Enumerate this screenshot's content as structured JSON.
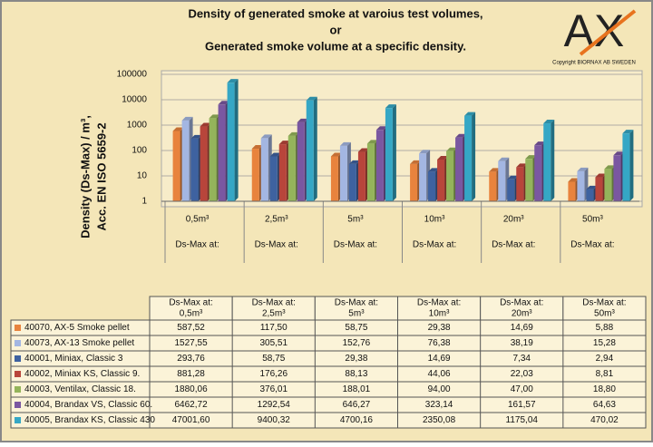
{
  "chart_data": {
    "type": "bar",
    "title": [
      "Density of generated smoke at varoius test volumes,",
      "or",
      "Generated smoke volume at a specific density."
    ],
    "ylabel": [
      "Density (Ds-Max) / m³,",
      "Acc. EN ISO 5659-2"
    ],
    "category_label": "Ds-Max at:",
    "categories": [
      "0,5m³",
      "2,5m³",
      "5m³",
      "10m³",
      "20m³",
      "50m³"
    ],
    "log_scale": true,
    "grid": true,
    "ylim": [
      1,
      100000
    ],
    "yticks": [
      1,
      10,
      100,
      1000,
      10000,
      100000
    ],
    "series": [
      {
        "name": "40070, AX-5 Smoke pellet",
        "color": "#e8833d",
        "values": [
          587.52,
          117.5,
          58.75,
          29.38,
          14.69,
          5.88
        ],
        "value_labels": [
          "587,52",
          "117,50",
          "58,75",
          "29,38",
          "14,69",
          "5,88"
        ]
      },
      {
        "name": "40073, AX-13 Smoke pellet",
        "color": "#a3b6e2",
        "values": [
          1527.55,
          305.51,
          152.76,
          76.38,
          38.19,
          15.28
        ],
        "value_labels": [
          "1527,55",
          "305,51",
          "152,76",
          "76,38",
          "38,19",
          "15,28"
        ]
      },
      {
        "name": "40001, Miniax, Classic 3",
        "color": "#3e62a0",
        "values": [
          293.76,
          58.75,
          29.38,
          14.69,
          7.34,
          2.94
        ],
        "value_labels": [
          "293,76",
          "58,75",
          "29,38",
          "14,69",
          "7,34",
          "2,94"
        ]
      },
      {
        "name": "40002, Miniax KS, Classic 9.",
        "color": "#b8453b",
        "values": [
          881.28,
          176.26,
          88.13,
          44.06,
          22.03,
          8.81
        ],
        "value_labels": [
          "881,28",
          "176,26",
          "88,13",
          "44,06",
          "22,03",
          "8,81"
        ]
      },
      {
        "name": "40003, Ventilax, Classic 18.",
        "color": "#94b45b",
        "values": [
          1880.06,
          376.01,
          188.01,
          94.0,
          47.0,
          18.8
        ],
        "value_labels": [
          "1880,06",
          "376,01",
          "188,01",
          "94,00",
          "47,00",
          "18,80"
        ]
      },
      {
        "name": "40004, Brandax VS, Classic 60.",
        "color": "#7a57a1",
        "values": [
          6462.72,
          1292.54,
          646.27,
          323.14,
          161.57,
          64.63
        ],
        "value_labels": [
          "6462,72",
          "1292,54",
          "646,27",
          "323,14",
          "161,57",
          "64,63"
        ]
      },
      {
        "name": "40005, Brandax KS, Classic 430",
        "color": "#35a7c5",
        "values": [
          47001.6,
          9400.32,
          4700.16,
          2350.08,
          1175.04,
          470.02
        ],
        "value_labels": [
          "47001,60",
          "9400,32",
          "4700,16",
          "2350,08",
          "1175,04",
          "470,02"
        ]
      }
    ]
  },
  "logo": {
    "text": "AX",
    "caption": "Copyright BIORNAX AB SWEDEN"
  }
}
